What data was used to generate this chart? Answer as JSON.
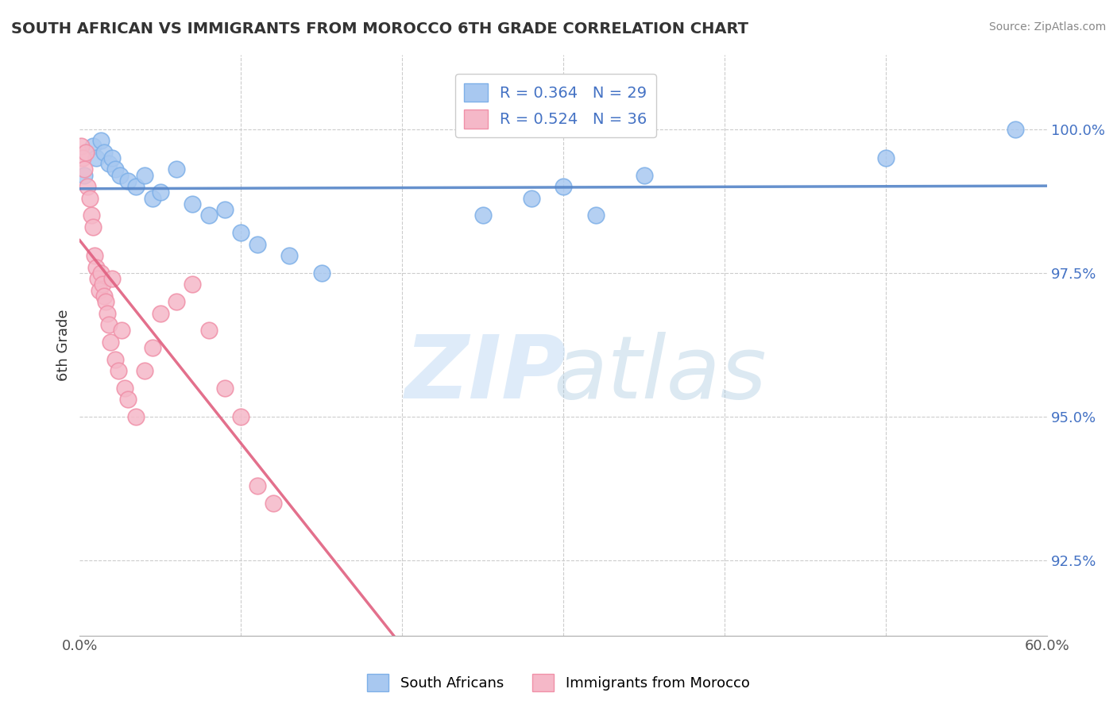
{
  "title": "SOUTH AFRICAN VS IMMIGRANTS FROM MOROCCO 6TH GRADE CORRELATION CHART",
  "source": "Source: ZipAtlas.com",
  "ylabel": "6th Grade",
  "ytick_values": [
    100.0,
    97.5,
    95.0,
    92.5
  ],
  "xlim": [
    0.0,
    60.0
  ],
  "ylim": [
    91.2,
    101.3
  ],
  "legend_r1": "R = 0.364",
  "legend_n1": "N = 29",
  "legend_r2": "R = 0.524",
  "legend_n2": "N = 36",
  "south_african_color": "#A8C8F0",
  "south_african_edge": "#7EB0E8",
  "morocco_color": "#F5B8C8",
  "morocco_edge": "#F090A8",
  "line_sa_color": "#5585C8",
  "line_mo_color": "#E06080",
  "south_africans_x": [
    0.3,
    0.8,
    1.0,
    1.3,
    1.5,
    1.8,
    2.0,
    2.2,
    2.5,
    3.0,
    3.5,
    4.0,
    4.5,
    5.0,
    6.0,
    7.0,
    8.0,
    9.0,
    10.0,
    11.0,
    13.0,
    15.0,
    25.0,
    28.0,
    30.0,
    32.0,
    35.0,
    50.0,
    58.0
  ],
  "south_africans_y": [
    99.2,
    99.7,
    99.5,
    99.8,
    99.6,
    99.4,
    99.5,
    99.3,
    99.2,
    99.1,
    99.0,
    99.2,
    98.8,
    98.9,
    99.3,
    98.7,
    98.5,
    98.6,
    98.2,
    98.0,
    97.8,
    97.5,
    98.5,
    98.8,
    99.0,
    98.5,
    99.2,
    99.5,
    100.0
  ],
  "morocco_x": [
    0.1,
    0.2,
    0.3,
    0.4,
    0.5,
    0.6,
    0.7,
    0.8,
    0.9,
    1.0,
    1.1,
    1.2,
    1.3,
    1.4,
    1.5,
    1.6,
    1.7,
    1.8,
    1.9,
    2.0,
    2.2,
    2.4,
    2.6,
    2.8,
    3.0,
    3.5,
    4.0,
    4.5,
    5.0,
    6.0,
    7.0,
    8.0,
    9.0,
    10.0,
    11.0,
    12.0
  ],
  "morocco_y": [
    99.7,
    99.5,
    99.3,
    99.6,
    99.0,
    98.8,
    98.5,
    98.3,
    97.8,
    97.6,
    97.4,
    97.2,
    97.5,
    97.3,
    97.1,
    97.0,
    96.8,
    96.6,
    96.3,
    97.4,
    96.0,
    95.8,
    96.5,
    95.5,
    95.3,
    95.0,
    95.8,
    96.2,
    96.8,
    97.0,
    97.3,
    96.5,
    95.5,
    95.0,
    93.8,
    93.5
  ]
}
